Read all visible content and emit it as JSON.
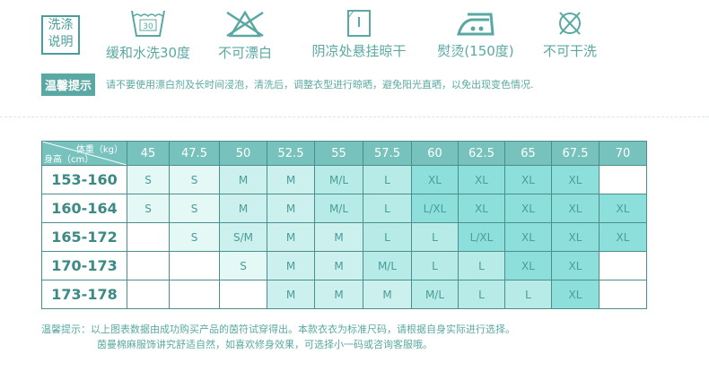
{
  "care": {
    "label": "洗涤说明",
    "items": [
      {
        "icon": "wash-30-icon",
        "label": "缓和水洗30度",
        "temp": "30"
      },
      {
        "icon": "no-bleach-icon",
        "label": "不可漂白"
      },
      {
        "icon": "line-dry-shade-icon",
        "label": "阴凉处悬挂晾干"
      },
      {
        "icon": "iron-medium-icon",
        "label": "熨烫(150度)"
      },
      {
        "icon": "no-dry-clean-icon",
        "label": "不可干洗"
      }
    ]
  },
  "tip": {
    "tag": "温馨提示",
    "text": "请不要使用漂白剂及长时间浸泡，清洗后，调整衣型进行晾晒，避免阳光直晒，以免出现变色情况."
  },
  "table": {
    "weight_label": "体重（kg）",
    "height_label": "身高（cm）",
    "weights": [
      "45",
      "47.5",
      "50",
      "52.5",
      "55",
      "57.5",
      "60",
      "62.5",
      "65",
      "67.5",
      "70"
    ],
    "rows": [
      {
        "height": "153-160",
        "sizes": [
          "S",
          "S",
          "M",
          "M",
          "M/L",
          "L",
          "XL",
          "XL",
          "XL",
          "XL",
          ""
        ]
      },
      {
        "height": "160-164",
        "sizes": [
          "S",
          "S",
          "M",
          "M",
          "M/L",
          "L",
          "L/XL",
          "XL",
          "XL",
          "XL",
          "XL"
        ]
      },
      {
        "height": "165-172",
        "sizes": [
          "",
          "S",
          "S/M",
          "M",
          "M",
          "L",
          "L",
          "L/XL",
          "XL",
          "XL",
          "XL"
        ]
      },
      {
        "height": "170-173",
        "sizes": [
          "",
          "",
          "S",
          "M",
          "M",
          "M/L",
          "L",
          "L",
          "XL",
          "XL",
          ""
        ]
      },
      {
        "height": "173-178",
        "sizes": [
          "",
          "",
          "",
          "M",
          "M",
          "M",
          "M/L",
          "L",
          "L",
          "XL",
          ""
        ]
      }
    ]
  },
  "note": {
    "line1": "温馨提示：以上图表数据由成功购买产品的茵符试穿得出。本款衣衣为标准尺码，请根据自身实际进行选择。",
    "line2": "茵曼棉麻服饰讲究舒适自然，如喜欢修身效果，可选择小一码或咨询客服哦。"
  },
  "colors": {
    "accent": "#4a9d99",
    "header": "#78c2be"
  }
}
